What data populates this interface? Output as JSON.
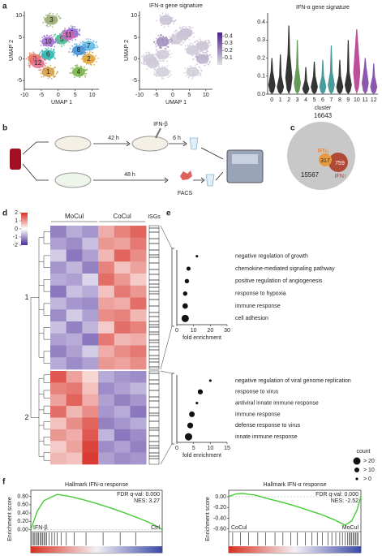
{
  "panel_labels": [
    "a",
    "b",
    "c",
    "d",
    "e",
    "f"
  ],
  "chart_data": [
    {
      "type": "scatter",
      "xlabel": "UMAP 1",
      "ylabel": "UMAP 2",
      "xlim": [
        -10,
        12
      ],
      "xticks": [
        -10,
        -5,
        0,
        5,
        10
      ],
      "ylim": [
        -7,
        11
      ],
      "yticks": [
        -5,
        0,
        5,
        10
      ],
      "labels": [
        "0",
        "1",
        "2",
        "3",
        "4",
        "5",
        "6",
        "7",
        "8",
        "9",
        "10",
        "11",
        "12"
      ],
      "x": [
        -7,
        -3,
        9,
        -2,
        6,
        1,
        -3,
        9,
        6,
        4,
        -3,
        3,
        -6
      ],
      "y": [
        0,
        -3,
        0,
        9,
        -3,
        4.5,
        1,
        3,
        2,
        6,
        4,
        5.5,
        -1
      ],
      "colors": [
        "#e96f5a",
        "#d19a3c",
        "#e0a030",
        "#97a86a",
        "#76b044",
        "#3fba8c",
        "#22b3ad",
        "#5fb6e4",
        "#3d8ed6",
        "#7d6fd6",
        "#a36ad0",
        "#d061b8",
        "#e86a8a"
      ]
    },
    {
      "type": "scatter",
      "title": "IFN-α gene signature",
      "xlabel": "UMAP 1",
      "ylabel": "UMAP 2",
      "xlim": [
        -10,
        12
      ],
      "xticks": [
        -10,
        -5,
        0,
        5,
        10
      ],
      "ylim": [
        -7,
        11
      ],
      "yticks": [
        -5,
        0,
        5,
        10
      ],
      "x": [
        -7,
        -3,
        9,
        -2,
        6,
        1,
        -3,
        9,
        6,
        4,
        -3,
        3,
        -6
      ],
      "y": [
        0,
        -3,
        0,
        9,
        -3,
        4.5,
        1,
        3,
        2,
        6,
        4,
        5.5,
        -1
      ],
      "values": [
        0.06,
        0.05,
        0.12,
        0.08,
        0.05,
        0.06,
        0.06,
        0.08,
        0.06,
        0.09,
        0.2,
        0.07,
        0.06
      ],
      "clim": [
        0,
        0.45
      ],
      "cticks": [
        0.1,
        0.2,
        0.3,
        0.4
      ]
    },
    {
      "type": "violin",
      "title": "IFN-α gene signature",
      "xlabel": "cluster",
      "categories": [
        "0",
        "1",
        "2",
        "3",
        "4",
        "5",
        "6",
        "7",
        "8",
        "9",
        "10",
        "11",
        "12"
      ],
      "values": [
        0.05,
        0.04,
        0.09,
        0.06,
        0.03,
        0.04,
        0.04,
        0.05,
        0.04,
        0.05,
        0.12,
        0.06,
        0.04
      ],
      "max": [
        0.2,
        0.22,
        0.38,
        0.3,
        0.15,
        0.18,
        0.19,
        0.27,
        0.19,
        0.3,
        0.36,
        0.2,
        0.17
      ],
      "colors": [
        "#111",
        "#111",
        "#111",
        "#4a8a3a",
        "#111",
        "#111",
        "#2a8a8a",
        "#2a8a8a",
        "#111",
        "#111",
        "#b0308a",
        "#7a3aa0",
        "#7a3aa0"
      ],
      "ylim": [
        0,
        0.45
      ],
      "yticks": [
        {
          "value": 0,
          "label": "0.0"
        },
        0.1,
        0.2,
        0.3,
        0.4
      ]
    },
    {
      "type": "dot",
      "xlabel": "fold enrichment",
      "categories": [
        "negative regulation of growth",
        "chemokine-mediated signaling pathway",
        "positive regulation of angiogenesis",
        "response to hypoxia",
        "immune response",
        "cell adhesion"
      ],
      "values": [
        12,
        7,
        6,
        5,
        5,
        5
      ],
      "counts": [
        3,
        8,
        9,
        9,
        14,
        25
      ],
      "xlim": [
        0,
        30
      ],
      "xticks": [
        0,
        10,
        20,
        30
      ]
    },
    {
      "type": "dot",
      "xlabel": "fold enrichment",
      "categories": [
        "negative regulation of viral genome replication",
        "response to virus",
        "antiviral innate immune response",
        "immune response",
        "defense response to virus",
        "innate immune response"
      ],
      "values": [
        10,
        7,
        6,
        4.5,
        4,
        3.5
      ],
      "counts": [
        3,
        12,
        3,
        15,
        16,
        25
      ],
      "xlim": [
        0,
        15
      ],
      "xticks": [
        0,
        5,
        10,
        15
      ],
      "size_legend": {
        "title": "count",
        "labels": [
          "> 20",
          "> 10",
          "> 0"
        ]
      }
    },
    {
      "type": "gsea",
      "title": "Hallmark IFN-α response",
      "ylabel": "Enrichment score",
      "fdr": "FDR q-val: 0.000",
      "nes": "NES: 3.27",
      "left_label": "IFN-β",
      "right_label": "Ctrl",
      "x": [
        0,
        5,
        10,
        20,
        30,
        40,
        50,
        60,
        70,
        80,
        88,
        93,
        97,
        100
      ],
      "values": [
        0,
        0.45,
        0.7,
        0.85,
        0.8,
        0.72,
        0.63,
        0.53,
        0.42,
        0.3,
        0.2,
        0.13,
        0.06,
        0
      ],
      "hits": [
        1,
        2,
        3,
        4,
        5,
        6,
        7,
        8,
        9,
        10,
        11,
        12,
        14,
        16,
        18,
        20,
        23,
        27,
        33,
        42,
        55,
        68,
        80
      ],
      "xlim": [
        0,
        100
      ],
      "ylim": [
        -0.05,
        0.95
      ],
      "yticks": [
        {
          "value": 0,
          "label": "0.00"
        },
        {
          "value": 0.2,
          "label": "0.20"
        },
        {
          "value": 0.4,
          "label": "0.40"
        },
        {
          "value": 0.6,
          "label": "0.60"
        },
        {
          "value": 0.8,
          "label": "0.80"
        }
      ]
    },
    {
      "type": "gsea",
      "title": "Hallmark IFN-α response",
      "ylabel": "Enrichment score",
      "fdr": "FDR q-val: 0.000",
      "nes": "NES: -2.52",
      "left_label": "CoCul",
      "right_label": "MoCul",
      "x": [
        0,
        5,
        10,
        20,
        30,
        40,
        50,
        60,
        70,
        80,
        88,
        93,
        97,
        100
      ],
      "values": [
        0,
        0.05,
        0.06,
        0.03,
        -0.04,
        -0.1,
        -0.17,
        -0.25,
        -0.33,
        -0.43,
        -0.53,
        -0.45,
        -0.25,
        0
      ],
      "hits": [
        3,
        9,
        15,
        22,
        28,
        35,
        41,
        47,
        52,
        58,
        63,
        67,
        71,
        75,
        78,
        81,
        84,
        86,
        88,
        90,
        91,
        92,
        93,
        94,
        95,
        96,
        97,
        98
      ],
      "xlim": [
        0,
        100
      ],
      "ylim": [
        -0.65,
        0.12
      ],
      "yticks": [
        {
          "value": 0,
          "label": "0.00"
        },
        {
          "value": -0.2,
          "label": "-0.20"
        },
        {
          "value": -0.4,
          "label": "-0.40"
        },
        {
          "value": -0.6,
          "label": "-0.60"
        }
      ]
    }
  ],
  "workflow": {
    "time_1": "42 h",
    "stimulus": "IFN-β",
    "time_2": "6 h",
    "time_3": "48 h",
    "sort": "FACS"
  },
  "venn": {
    "total": 16643,
    "background": 15567,
    "down_label": "IFN↓",
    "down": 317,
    "up": 759,
    "up_label": "IFN↑"
  },
  "heatmap": {
    "columns": [
      "MoCul",
      "CoCul"
    ],
    "isg_label": "ISGs",
    "zlim": [
      -2,
      2
    ],
    "zticks": [
      2,
      1,
      0,
      -1,
      -2
    ],
    "clusters": [
      {
        "label": "1",
        "z": [
          [
            -1.2,
            -0.8,
            -1.0,
            0.8,
            1.2,
            1.5
          ],
          [
            -0.9,
            -1.1,
            -0.6,
            1.0,
            0.9,
            1.3
          ],
          [
            -0.5,
            -1.3,
            -0.9,
            0.7,
            1.5,
            1.1
          ],
          [
            -1.0,
            -0.7,
            -1.2,
            1.2,
            0.6,
            0.9
          ],
          [
            -0.8,
            -0.9,
            -0.4,
            1.4,
            1.0,
            0.5
          ],
          [
            -1.3,
            -0.6,
            -0.8,
            0.6,
            1.3,
            1.0
          ],
          [
            -0.7,
            -1.0,
            -1.1,
            0.9,
            0.8,
            1.4
          ],
          [
            -1.1,
            -0.5,
            -0.9,
            1.1,
            1.2,
            0.7
          ],
          [
            -0.6,
            -1.2,
            -0.7,
            0.5,
            1.4,
            1.2
          ],
          [
            -0.9,
            -0.8,
            -1.3,
            1.3,
            0.7,
            0.8
          ],
          [
            -1.2,
            -0.9,
            -0.5,
            0.8,
            1.1,
            1.3
          ],
          [
            -0.8,
            -1.1,
            -0.9,
            1.0,
            0.9,
            1.1
          ]
        ]
      },
      {
        "label": "2",
        "z": [
          [
            1.6,
            0.9,
            0.4,
            -0.8,
            -1.0,
            -1.1
          ],
          [
            1.2,
            1.3,
            0.6,
            -1.1,
            -0.9,
            -0.7
          ],
          [
            0.9,
            1.5,
            0.8,
            -0.9,
            -1.2,
            -1.0
          ],
          [
            1.4,
            0.7,
            1.1,
            -1.0,
            -0.8,
            -1.3
          ],
          [
            0.6,
            1.1,
            1.5,
            -1.2,
            -1.0,
            -0.8
          ],
          [
            1.0,
            0.8,
            1.6,
            -0.7,
            -1.3,
            -1.1
          ],
          [
            0.5,
            0.9,
            1.8,
            -1.1,
            -0.9,
            -1.2
          ],
          [
            0.7,
            0.6,
            1.9,
            -0.9,
            -1.1,
            -1.0
          ]
        ]
      }
    ]
  }
}
